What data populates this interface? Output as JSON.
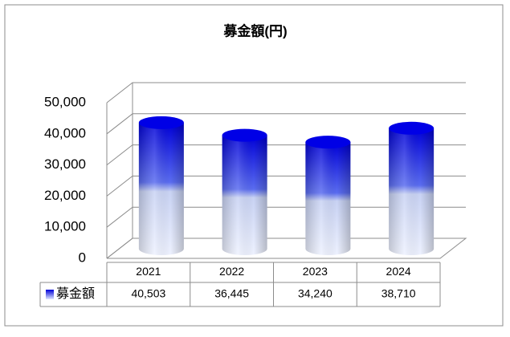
{
  "chart_data": {
    "type": "bar",
    "title": "募金額(円)",
    "categories": [
      "2021",
      "2022",
      "2023",
      "2024"
    ],
    "series": [
      {
        "name": "募金額",
        "color": "#0000e6",
        "values": [
          40503,
          36445,
          34240,
          38710
        ],
        "value_labels": [
          "40,503",
          "36,445",
          "34,240",
          "38,710"
        ]
      }
    ],
    "ylim": [
      0,
      50000
    ],
    "yticks": [
      0,
      {
        "value": 10000,
        "label": "10,000"
      },
      {
        "value": 20000,
        "label": "20,000"
      },
      {
        "value": 30000,
        "label": "30,000"
      },
      {
        "value": 40000,
        "label": "40,000"
      },
      {
        "value": 50000,
        "label": "50,000"
      }
    ],
    "grid": true
  }
}
